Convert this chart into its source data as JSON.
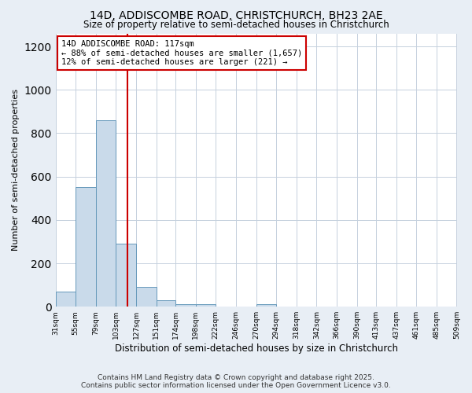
{
  "title_line1": "14D, ADDISCOMBE ROAD, CHRISTCHURCH, BH23 2AE",
  "title_line2": "Size of property relative to semi-detached houses in Christchurch",
  "xlabel": "Distribution of semi-detached houses by size in Christchurch",
  "ylabel": "Number of semi-detached properties",
  "bar_lefts": [
    31,
    55,
    79,
    103,
    127,
    151,
    174,
    198,
    222,
    246,
    270,
    294,
    318,
    342,
    366,
    390,
    413,
    437,
    461,
    485
  ],
  "bar_rights": [
    55,
    79,
    103,
    127,
    151,
    174,
    198,
    222,
    246,
    270,
    294,
    318,
    342,
    366,
    390,
    413,
    437,
    461,
    485,
    509
  ],
  "bar_heights": [
    70,
    550,
    860,
    290,
    90,
    30,
    10,
    10,
    0,
    0,
    10,
    0,
    0,
    0,
    0,
    0,
    0,
    0,
    0,
    0
  ],
  "xtick_labels": [
    "31sqm",
    "55sqm",
    "79sqm",
    "103sqm",
    "127sqm",
    "151sqm",
    "174sqm",
    "198sqm",
    "222sqm",
    "246sqm",
    "270sqm",
    "294sqm",
    "318sqm",
    "342sqm",
    "366sqm",
    "390sqm",
    "413sqm",
    "437sqm",
    "461sqm",
    "485sqm",
    "509sqm"
  ],
  "bar_color": "#c9daea",
  "bar_edgecolor": "#6699bb",
  "property_size": 117,
  "red_line_color": "#cc0000",
  "annotation_line1": "14D ADDISCOMBE ROAD: 117sqm",
  "annotation_line2": "← 88% of semi-detached houses are smaller (1,657)",
  "annotation_line3": "12% of semi-detached houses are larger (221) →",
  "annotation_box_edgecolor": "#cc0000",
  "annotation_box_facecolor": "#ffffff",
  "ylim": [
    0,
    1260
  ],
  "yticks": [
    0,
    200,
    400,
    600,
    800,
    1000,
    1200
  ],
  "footnote_line1": "Contains HM Land Registry data © Crown copyright and database right 2025.",
  "footnote_line2": "Contains public sector information licensed under the Open Government Licence v3.0.",
  "background_color": "#e8eef5",
  "plot_background_color": "#ffffff",
  "grid_color": "#c5d0dd"
}
